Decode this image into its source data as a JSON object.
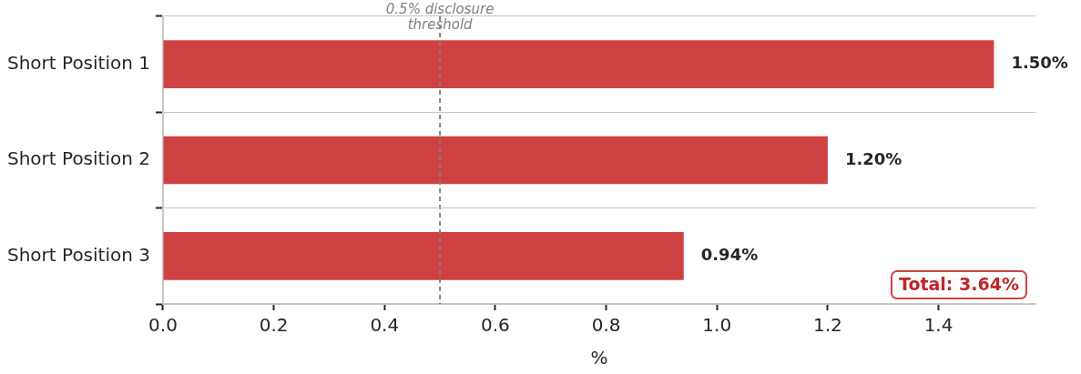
{
  "chart_data": {
    "type": "bar",
    "orientation": "horizontal",
    "xlabel": "%",
    "categories": [
      "Short Position 1",
      "Short Position 2",
      "Short Position 3"
    ],
    "values": [
      1.5,
      1.2,
      0.94
    ],
    "color": "#d04242",
    "value_labels": [
      "1.50%",
      "1.20%",
      "0.94%"
    ],
    "xlim": [
      0,
      1.575
    ],
    "xticks": [
      {
        "value": 0,
        "label": "0.0"
      },
      {
        "value": 0.2,
        "label": "0.2"
      },
      {
        "value": 0.4,
        "label": "0.4"
      },
      {
        "value": 0.6,
        "label": "0.6"
      },
      {
        "value": 0.8,
        "label": "0.8"
      },
      {
        "value": 1,
        "label": "1.0"
      },
      {
        "value": 1.2,
        "label": "1.2"
      },
      {
        "value": 1.4,
        "label": "1.4"
      }
    ],
    "grid": "y",
    "legend": false,
    "ref_lines": [
      {
        "axis": "x",
        "value": 0.5,
        "label": "0.5% disclosure threshold",
        "color": "#808080",
        "line_style": "dashed"
      }
    ],
    "annotations": [
      "Total: 3.64%"
    ]
  }
}
